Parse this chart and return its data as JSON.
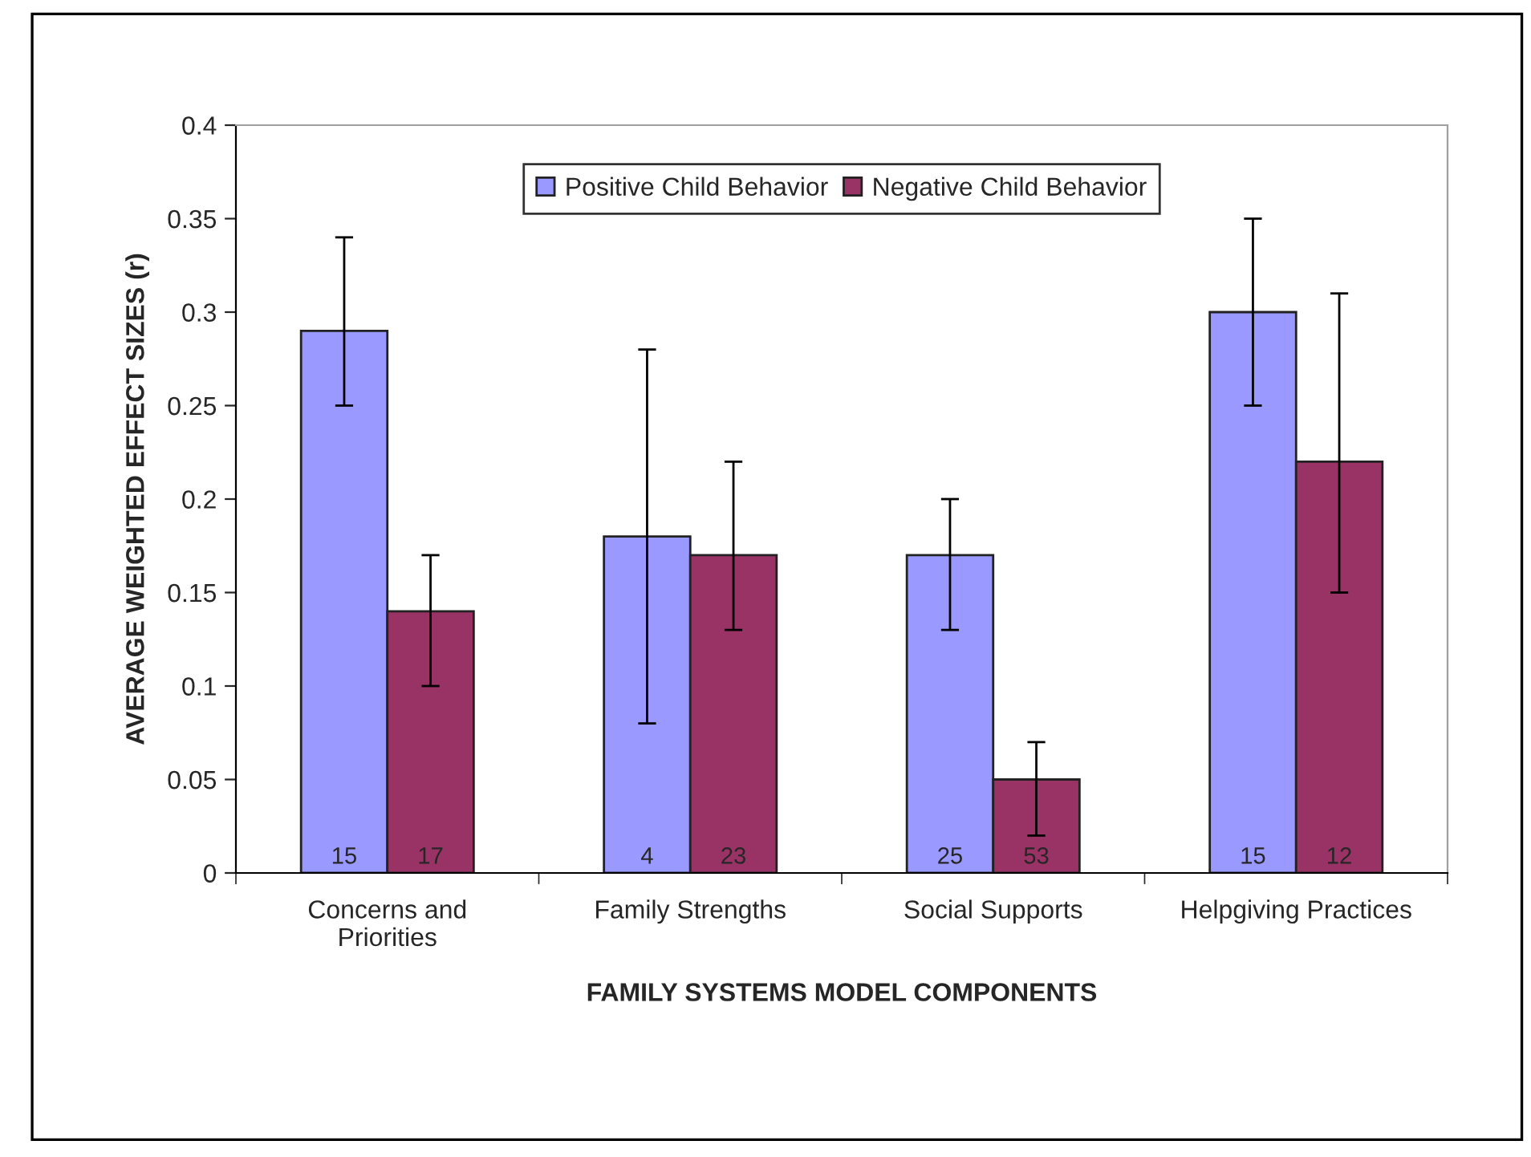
{
  "chart_data": {
    "type": "bar",
    "categories": [
      "Concerns and\nPriorities",
      "Family Strengths",
      "Social Supports",
      "Helpgiving Practices"
    ],
    "xlabel": "FAMILY SYSTEMS MODEL COMPONENTS",
    "ylabel": "AVERAGE WEIGHTED EFFECT SIZES (r)",
    "series": [
      {
        "name": "Positive Child Behavior",
        "color": "#9999ff",
        "values": [
          0.29,
          0.18,
          0.17,
          0.3
        ],
        "errors": [
          [
            0.25,
            0.34
          ],
          [
            0.08,
            0.28
          ],
          [
            0.13,
            0.2
          ],
          [
            0.25,
            0.35
          ]
        ]
      },
      {
        "name": "Negative Child Behavior",
        "color": "#993366",
        "values": [
          0.14,
          0.17,
          0.05,
          0.22
        ],
        "errors": [
          [
            0.1,
            0.17
          ],
          [
            0.13,
            0.22
          ],
          [
            0.02,
            0.07
          ],
          [
            0.15,
            0.31
          ]
        ]
      }
    ],
    "annotations": [
      {
        "text": "15",
        "x": "Concerns and\nPriorities",
        "y": 0
      },
      {
        "text": "17",
        "x": "Concerns and\nPriorities",
        "y": 0
      },
      {
        "text": "4",
        "x": "Family Strengths",
        "y": 0
      },
      {
        "text": "23",
        "x": "Family Strengths",
        "y": 0
      },
      {
        "text": "25",
        "x": "Social Supports",
        "y": 0
      },
      {
        "text": "53",
        "x": "Social Supports",
        "y": 0
      },
      {
        "text": "15",
        "x": "Helpgiving Practices",
        "y": 0
      },
      {
        "text": "12",
        "x": "Helpgiving Practices",
        "y": 0
      }
    ],
    "ylim": [
      0,
      0.4
    ],
    "yticks": [
      {
        "value": 0,
        "label": "0"
      },
      0.05,
      0.1,
      0.15,
      0.2,
      0.25,
      0.3,
      0.35,
      0.4
    ],
    "legend": "top",
    "grid": false
  }
}
